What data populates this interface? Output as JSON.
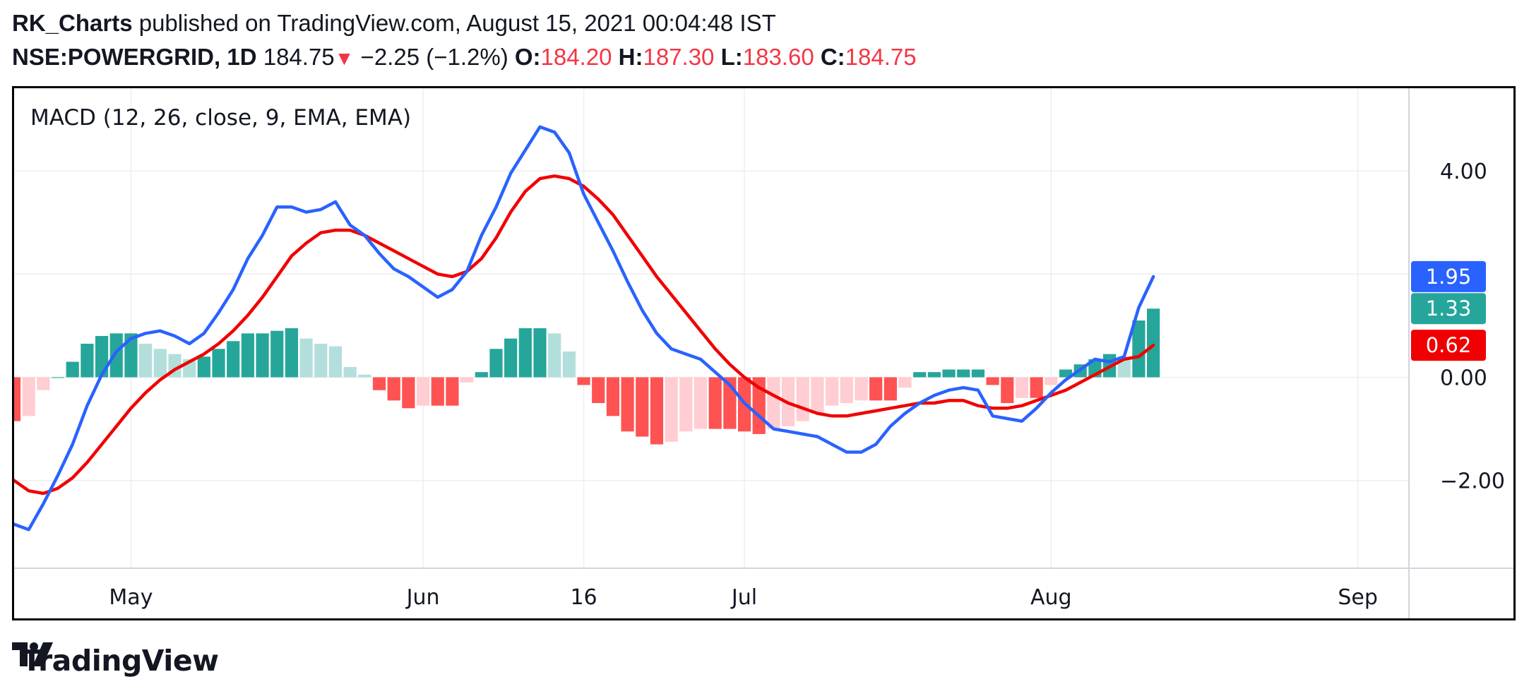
{
  "header": {
    "author": "RK_Charts",
    "published_text": "published on TradingView.com, August 15, 2021 00:04:48 IST",
    "symbol": "NSE:POWERGRID, 1D",
    "price": "184.75",
    "change_arrow": "▼",
    "change": "−2.25 (−1.2%)",
    "open_label": "O:",
    "open": "184.20",
    "high_label": "H:",
    "high": "187.30",
    "low_label": "L:",
    "low": "183.60",
    "close_label": "C:",
    "close": "184.75"
  },
  "branding": {
    "name": "TradingView"
  },
  "colors": {
    "macd_line": "#2962ff",
    "signal_line": "#f00000",
    "hist_up_strong": "#26a69a",
    "hist_up_weak": "#b2dfdb",
    "hist_down_strong": "#ff5252",
    "hist_down_weak": "#ffcdd2",
    "price_down": "#f23645"
  },
  "chart_data": {
    "type": "line",
    "title": "MACD (12, 26, close, 9, EMA, EMA)",
    "y_ticks": [
      "4.00",
      "2.00",
      "0.00",
      "−2.00"
    ],
    "y_tick_values": [
      4,
      2,
      0,
      -2
    ],
    "ylim": [
      -3.7,
      5.6
    ],
    "x_tick_labels": [
      "May",
      "Jun",
      "16",
      "Jul",
      "Aug",
      "Sep"
    ],
    "x_tick_index": [
      8,
      28,
      39,
      50,
      71,
      92
    ],
    "x_range": [
      0,
      95.5
    ],
    "grid": true,
    "last_values": {
      "macd": "1.95",
      "histogram": "1.33",
      "signal": "0.62"
    },
    "series": [
      {
        "key": "macd",
        "values": [
          -2.85,
          -2.95,
          -2.45,
          -1.9,
          -1.3,
          -0.55,
          0.05,
          0.5,
          0.75,
          0.85,
          0.9,
          0.8,
          0.65,
          0.85,
          1.25,
          1.7,
          2.3,
          2.75,
          3.3,
          3.3,
          3.2,
          3.25,
          3.4,
          2.95,
          2.75,
          2.4,
          2.1,
          1.95,
          1.75,
          1.55,
          1.7,
          2.05,
          2.75,
          3.3,
          3.95,
          4.4,
          4.85,
          4.75,
          4.35,
          3.55,
          3.0,
          2.45,
          1.85,
          1.3,
          0.85,
          0.55,
          0.45,
          0.35,
          0.1,
          -0.15,
          -0.5,
          -0.75,
          -1.0,
          -1.05,
          -1.1,
          -1.15,
          -1.3,
          -1.45,
          -1.45,
          -1.3,
          -0.95,
          -0.7,
          -0.5,
          -0.35,
          -0.25,
          -0.2,
          -0.25,
          -0.75,
          -0.8,
          -0.85,
          -0.6,
          -0.3,
          -0.05,
          0.15,
          0.35,
          0.3,
          0.4,
          1.35,
          1.95
        ]
      },
      {
        "key": "signal",
        "values": [
          -2.0,
          -2.2,
          -2.25,
          -2.15,
          -1.95,
          -1.65,
          -1.3,
          -0.95,
          -0.6,
          -0.3,
          -0.05,
          0.15,
          0.3,
          0.45,
          0.65,
          0.9,
          1.2,
          1.55,
          1.95,
          2.35,
          2.6,
          2.8,
          2.85,
          2.85,
          2.75,
          2.6,
          2.45,
          2.3,
          2.15,
          2.0,
          1.95,
          2.05,
          2.3,
          2.7,
          3.2,
          3.6,
          3.85,
          3.9,
          3.85,
          3.7,
          3.45,
          3.15,
          2.75,
          2.35,
          1.95,
          1.6,
          1.25,
          0.9,
          0.55,
          0.25,
          0.0,
          -0.2,
          -0.35,
          -0.5,
          -0.6,
          -0.7,
          -0.75,
          -0.75,
          -0.7,
          -0.65,
          -0.6,
          -0.55,
          -0.5,
          -0.5,
          -0.45,
          -0.45,
          -0.55,
          -0.6,
          -0.6,
          -0.55,
          -0.45,
          -0.35,
          -0.25,
          -0.1,
          0.05,
          0.2,
          0.35,
          0.4,
          0.62
        ]
      },
      {
        "key": "histogram",
        "values": [
          -0.85,
          -0.75,
          -0.25,
          0.0,
          0.3,
          0.65,
          0.8,
          0.85,
          0.85,
          0.65,
          0.55,
          0.45,
          0.35,
          0.4,
          0.55,
          0.7,
          0.85,
          0.85,
          0.9,
          0.95,
          0.75,
          0.65,
          0.6,
          0.2,
          0.05,
          -0.25,
          -0.45,
          -0.6,
          -0.55,
          -0.55,
          -0.55,
          -0.1,
          0.1,
          0.55,
          0.75,
          0.95,
          0.95,
          0.85,
          0.5,
          -0.15,
          -0.5,
          -0.75,
          -1.05,
          -1.15,
          -1.3,
          -1.25,
          -1.05,
          -1.0,
          -1.0,
          -1.0,
          -1.05,
          -1.1,
          -1.0,
          -0.95,
          -0.85,
          -0.7,
          -0.55,
          -0.5,
          -0.45,
          -0.45,
          -0.45,
          -0.2,
          0.1,
          0.1,
          0.15,
          0.15,
          0.15,
          -0.15,
          -0.5,
          -0.4,
          -0.4,
          -0.15,
          0.15,
          0.25,
          0.35,
          0.45,
          0.4,
          1.1,
          1.33
        ]
      }
    ]
  }
}
